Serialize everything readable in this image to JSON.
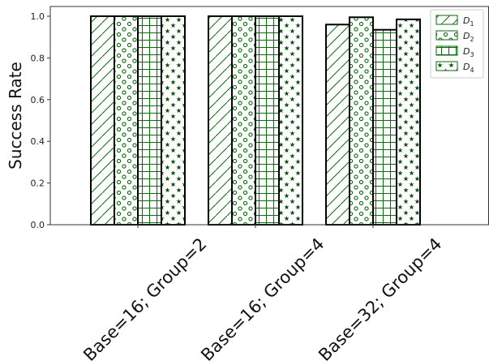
{
  "chart_data": {
    "type": "bar",
    "title": "",
    "xlabel": "",
    "ylabel": "Success Rate",
    "ylim": [
      0.0,
      1.05
    ],
    "yticks": [
      "0.0",
      "0.2",
      "0.4",
      "0.6",
      "0.8",
      "1.0"
    ],
    "categories": [
      "Base=16; Group=2",
      "Base=16; Group=4",
      "Base=32; Group=4"
    ],
    "series": [
      {
        "name": "D1",
        "values": [
          1.0,
          1.0,
          0.96
        ]
      },
      {
        "name": "D2",
        "values": [
          1.0,
          1.0,
          0.995
        ]
      },
      {
        "name": "D3",
        "values": [
          1.0,
          1.0,
          0.935
        ]
      },
      {
        "name": "D4",
        "values": [
          1.0,
          1.0,
          0.985
        ]
      }
    ],
    "legend": {
      "placement": "top-right",
      "labels": [
        {
          "base": "D",
          "sub": "1"
        },
        {
          "base": "D",
          "sub": "2"
        },
        {
          "base": "D",
          "sub": "3"
        },
        {
          "base": "D",
          "sub": "4"
        }
      ]
    },
    "grid": false,
    "colors": {
      "edge": "#000000",
      "hatch": "#0a6b0a",
      "axis": "#333333"
    },
    "patterns": [
      "diagonal-lines",
      "circles",
      "grid-lines",
      "stars"
    ]
  }
}
